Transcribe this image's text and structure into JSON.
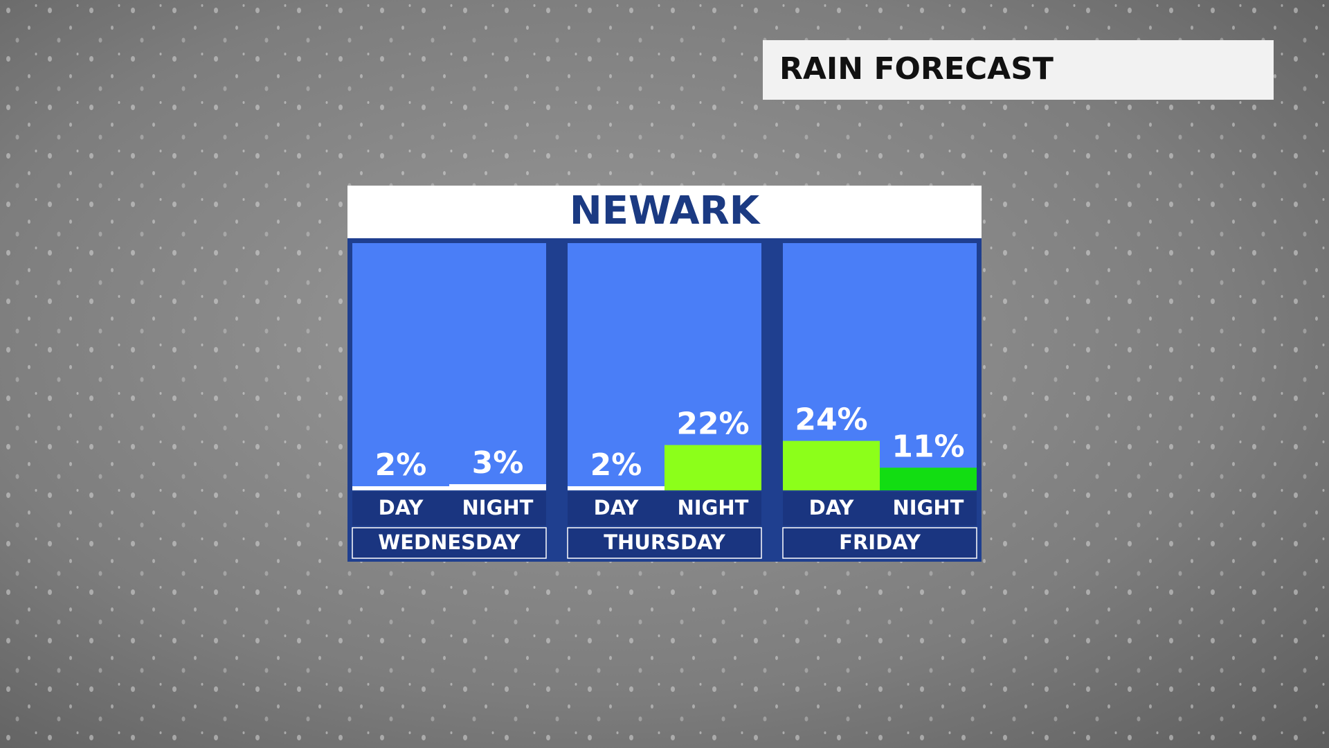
{
  "chart_data": {
    "type": "bar",
    "title": "RAIN FORECAST",
    "subtitle": "NEWARK",
    "categories": [
      "WEDNESDAY",
      "THURSDAY",
      "FRIDAY"
    ],
    "series": [
      {
        "name": "DAY",
        "values": [
          2,
          2,
          24
        ],
        "value_labels": [
          "2%",
          "2%",
          "24%"
        ],
        "colors": [
          "#ffffff",
          "#ffffff",
          "#8cff1a"
        ]
      },
      {
        "name": "NIGHT",
        "values": [
          3,
          22,
          11
        ],
        "value_labels": [
          "3%",
          "22%",
          "11%"
        ],
        "colors": [
          "#ffffff",
          "#8cff1a",
          "#12dd12"
        ]
      }
    ],
    "ylim": [
      0,
      120
    ]
  }
}
